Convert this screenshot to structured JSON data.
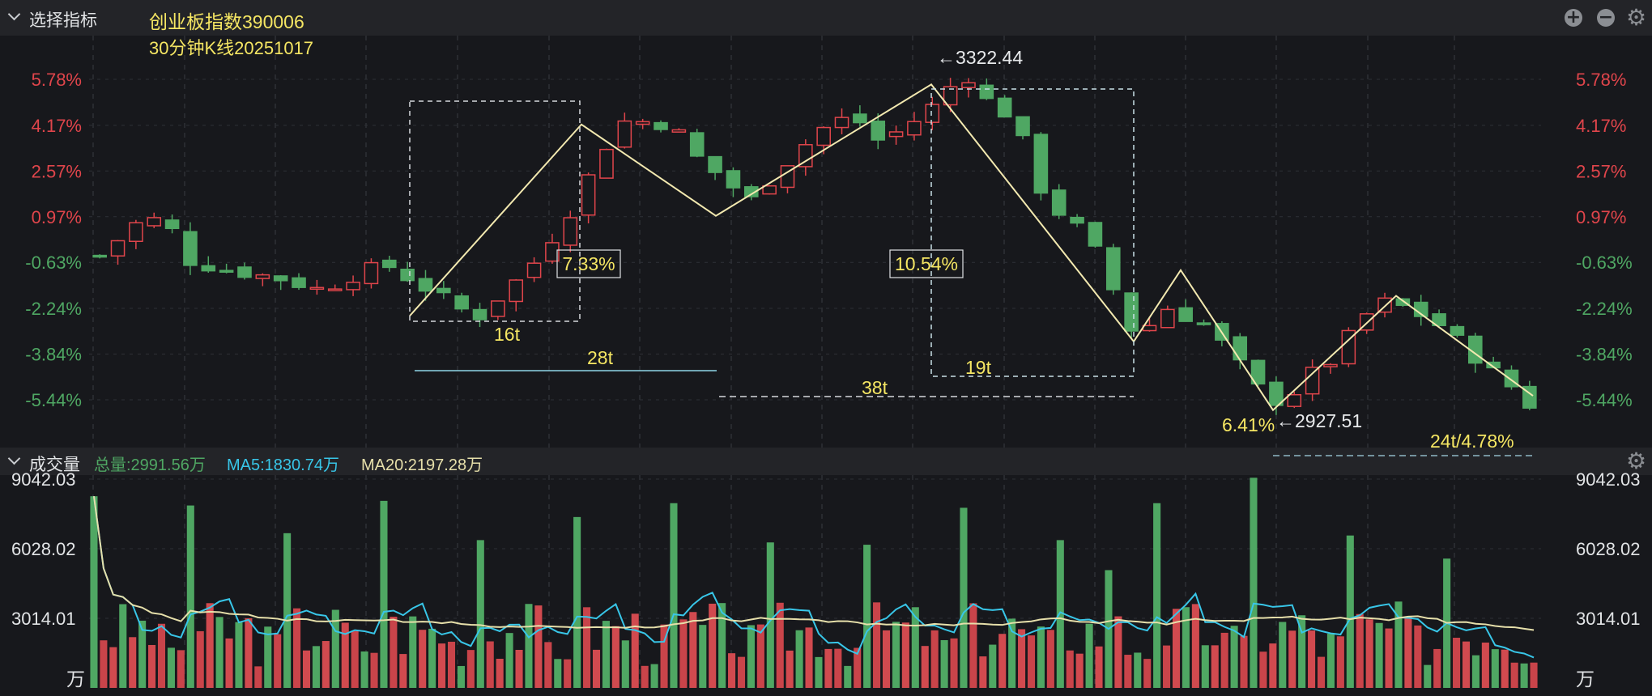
{
  "main_panel": {
    "header_label": "选择指标",
    "title_line1": "创业板指数390006",
    "title_line2": "30分钟K线20251017"
  },
  "volume_panel": {
    "header_label": "成交量",
    "total": "总量:2991.56万",
    "ma5": "MA5:1830.74万",
    "ma20": "MA20:2197.28万",
    "unit": "万"
  },
  "colors": {
    "up": "#e0454b",
    "down": "#4fa763",
    "accent_text": "#f5e663",
    "zigzag": "#f3e9b0",
    "ma5": "#38c6e8",
    "ma20": "#e6dfaa",
    "cyan_line": "#8fd6e6"
  },
  "chart_data": [
    {
      "type": "candlestick",
      "y_tick_labels": [
        "5.78%",
        "4.17%",
        "2.57%",
        "0.97%",
        "-0.63%",
        "-2.24%",
        "-3.84%",
        "-5.44%"
      ],
      "y_tick_values": [
        5.78,
        4.17,
        2.57,
        0.97,
        -0.63,
        -2.24,
        -3.84,
        -5.44
      ],
      "ylim": [
        -6.8,
        7.2
      ],
      "bars": 80,
      "waypoints": [
        [
          0,
          -0.4
        ],
        [
          3,
          0.8
        ],
        [
          5,
          0.9
        ],
        [
          7,
          -0.6
        ],
        [
          10,
          -0.9
        ],
        [
          14,
          -1.2
        ],
        [
          17,
          -1.6
        ],
        [
          20,
          -1.0
        ],
        [
          22,
          -0.7
        ],
        [
          25,
          -1.5
        ],
        [
          29,
          -2.6
        ],
        [
          31,
          -1.7
        ],
        [
          33,
          -0.9
        ],
        [
          36,
          1.0
        ],
        [
          38,
          2.7
        ],
        [
          40,
          4.3
        ],
        [
          42,
          4.3
        ],
        [
          44,
          4.2
        ],
        [
          46,
          3.0
        ],
        [
          48,
          2.3
        ],
        [
          50,
          1.5
        ],
        [
          52,
          2.5
        ],
        [
          54,
          3.4
        ],
        [
          56,
          4.2
        ],
        [
          58,
          4.5
        ],
        [
          60,
          3.6
        ],
        [
          62,
          4.1
        ],
        [
          64,
          4.8
        ],
        [
          66,
          5.8
        ],
        [
          67,
          5.9
        ],
        [
          68,
          5.1
        ],
        [
          70,
          4.5
        ],
        [
          71,
          3.6
        ],
        [
          72,
          2.2
        ],
        [
          74,
          1.0
        ],
        [
          76,
          0.3
        ],
        [
          78,
          -1.6
        ],
        [
          79,
          -2.8
        ],
        [
          80,
          -3.2
        ],
        [
          82,
          -2.2
        ],
        [
          85,
          -2.8
        ],
        [
          87,
          -3.8
        ],
        [
          89,
          -5.0
        ],
        [
          91,
          -5.6
        ],
        [
          93,
          -4.6
        ],
        [
          95,
          -4.0
        ],
        [
          97,
          -2.6
        ],
        [
          99,
          -2.0
        ],
        [
          101,
          -2.3
        ],
        [
          103,
          -2.8
        ],
        [
          105,
          -3.6
        ],
        [
          107,
          -4.4
        ],
        [
          109,
          -5.1
        ],
        [
          110,
          -5.6
        ]
      ],
      "zigzag": [
        [
          -2.5
        ],
        [
          4.2
        ],
        [
          1.0
        ],
        [
          5.6
        ],
        [
          -3.4
        ],
        [
          -0.9
        ],
        [
          -5.8
        ],
        [
          -1.8
        ],
        [
          -5.3
        ]
      ],
      "annotations": {
        "high_label": "←3322.44",
        "low_label": "←2927.51",
        "pct_rise_1": "7.33%",
        "pct_fall_1": "10.54%",
        "pct_fall_2": "6.41%",
        "count_16": "16t",
        "count_28": "28t",
        "count_38": "38t",
        "count_19": "19t",
        "count_24": "24t/4.78%"
      }
    },
    {
      "type": "bar",
      "y_tick_labels": [
        "9042.03",
        "6028.02",
        "3014.01"
      ],
      "y_tick_values": [
        9042.03,
        6028.02,
        3014.01
      ],
      "ylim": [
        0,
        9042.03
      ],
      "spikes": [
        [
          0,
          8300
        ],
        [
          10,
          7900
        ],
        [
          20,
          6700
        ],
        [
          30,
          8100
        ],
        [
          40,
          6400
        ],
        [
          50,
          7400
        ],
        [
          60,
          8000
        ],
        [
          70,
          6300
        ],
        [
          80,
          6200
        ],
        [
          90,
          7800
        ],
        [
          100,
          6400
        ],
        [
          105,
          5100
        ],
        [
          110,
          8000
        ],
        [
          120,
          9100
        ],
        [
          130,
          6600
        ],
        [
          140,
          5600
        ],
        [
          150,
          5400
        ],
        [
          160,
          6100
        ],
        [
          170,
          4400
        ]
      ],
      "ma5_label": "MA5",
      "ma20_label": "MA20"
    }
  ]
}
